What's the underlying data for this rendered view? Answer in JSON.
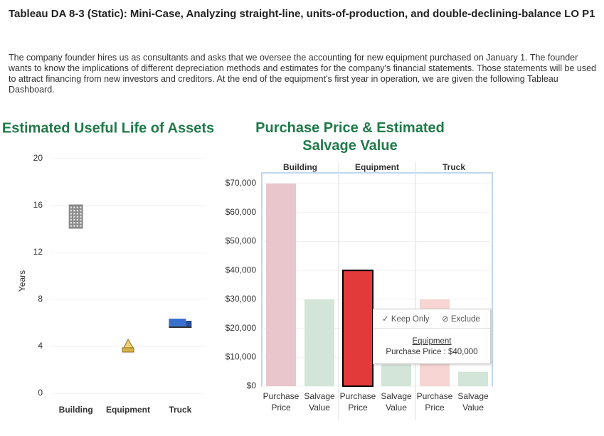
{
  "header": {
    "title": "Tableau DA 8-3 (Static): Mini-Case, Analyzing straight-line, units-of-production, and double-declining-balance LO P1",
    "paragraph": "The company founder hires us as consultants and asks that we oversee the accounting for new equipment purchased on January 1. The founder wants to know the implications of different depreciation methods and estimates for the company's financial statements. Those statements will be used to attract financing from new investors and creditors. At the end of the equipment's first year in operation, we are given the following Tableau Dashboard."
  },
  "chart_data": [
    {
      "type": "icon-scatter",
      "title": "Estimated Useful Life of Assets",
      "y_label": "Years",
      "categories": [
        "Building",
        "Equipment",
        "Truck"
      ],
      "values": [
        15,
        4,
        6
      ],
      "ylim": [
        0,
        20
      ],
      "yticks": [
        0,
        4,
        8,
        12,
        16,
        20
      ],
      "grid": true
    },
    {
      "type": "grouped-bar",
      "title": "Purchase Price & Estimated Salvage Value",
      "categories": [
        "Building",
        "Equipment",
        "Truck"
      ],
      "series": [
        {
          "name": "Purchase Price",
          "values": [
            70000,
            40000,
            30000
          ],
          "colors": [
            "#e8c6cb",
            "#e23a3a",
            "#f6d5d2"
          ]
        },
        {
          "name": "Salvage Value",
          "values": [
            30000,
            7500,
            5000
          ],
          "colors": [
            "#d2e5d8",
            "#d2e5d8",
            "#d2e5d8"
          ]
        }
      ],
      "highlight": {
        "series": 0,
        "index": 1
      },
      "ylim": [
        0,
        73700
      ],
      "yticks": [
        {
          "value": 0,
          "label": "$0"
        },
        {
          "value": 10000,
          "label": "$10,000"
        },
        {
          "value": 20000,
          "label": "$20,000"
        },
        {
          "value": 30000,
          "label": "$30,000"
        },
        {
          "value": 40000,
          "label": "$40,000"
        },
        {
          "value": 50000,
          "label": "$50,000"
        },
        {
          "value": 60000,
          "label": "$60,000"
        },
        {
          "value": 70000,
          "label": "$70,000"
        }
      ],
      "tooltip": {
        "actions": [
          "Keep Only",
          "Exclude"
        ],
        "title": "Equipment",
        "text": "Purchase Price : $40,000"
      }
    }
  ]
}
